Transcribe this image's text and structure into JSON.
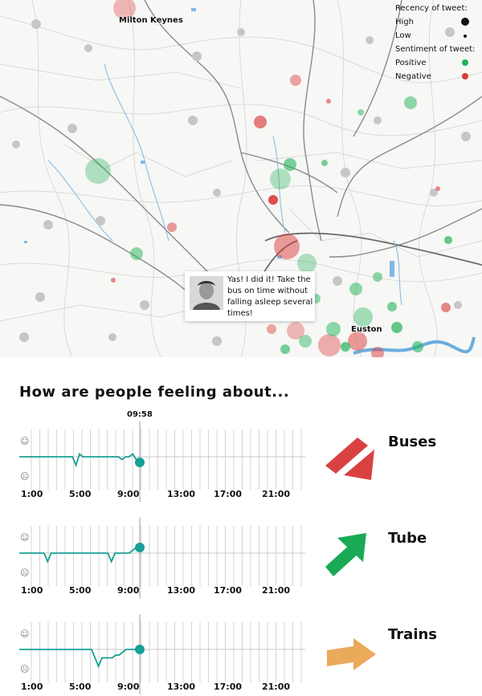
{
  "map": {
    "places": [
      {
        "name": "Milton Keynes"
      },
      {
        "name": "Euston"
      }
    ],
    "legend": {
      "recency_title": "Recency of tweet:",
      "recency_high": "High",
      "recency_low": "Low",
      "sentiment_title": "Sentiment of tweet:",
      "sentiment_positive": "Positive",
      "sentiment_negative": "Negative"
    },
    "colors": {
      "positive": "#21b35a",
      "negative": "#d93b3b",
      "high_dot": "#111111"
    },
    "tooltip": {
      "text": "Yas! I did it! Take the bus on time without falling asleep several times!"
    }
  },
  "section_title": "How are people feeling about...",
  "current_time": "09:58",
  "x_ticks": [
    "1:00",
    "5:00",
    "9:00",
    "13:00",
    "17:00",
    "21:00"
  ],
  "face_icons": {
    "happy": "☺",
    "sad": "☹"
  },
  "modes": [
    {
      "name": "Buses",
      "arrow": "down",
      "arrow_color": "#d94141",
      "sentiment": [
        0.5,
        0.5,
        0.5,
        0.5,
        0.5,
        0.5,
        0.5,
        0.5,
        0.5,
        0.5,
        0.5,
        0.5,
        0.5,
        0.5,
        0.5,
        0.5,
        0.35,
        0.55,
        0.5,
        0.5,
        0.5,
        0.5,
        0.5,
        0.5,
        0.5,
        0.5,
        0.5,
        0.5,
        0.5,
        0.45,
        0.5,
        0.5,
        0.55,
        0.45,
        0.4
      ]
    },
    {
      "name": "Tube",
      "arrow": "up",
      "arrow_color": "#1aaa55",
      "sentiment": [
        0.5,
        0.5,
        0.5,
        0.5,
        0.5,
        0.5,
        0.5,
        0.5,
        0.35,
        0.5,
        0.5,
        0.5,
        0.5,
        0.5,
        0.5,
        0.5,
        0.5,
        0.5,
        0.5,
        0.5,
        0.5,
        0.5,
        0.5,
        0.5,
        0.5,
        0.5,
        0.35,
        0.5,
        0.5,
        0.5,
        0.5,
        0.5,
        0.55,
        0.6,
        0.6
      ]
    },
    {
      "name": "Trains",
      "arrow": "right",
      "arrow_color": "#eba95a",
      "sentiment": [
        0.5,
        0.5,
        0.5,
        0.5,
        0.5,
        0.5,
        0.5,
        0.5,
        0.5,
        0.5,
        0.5,
        0.5,
        0.5,
        0.5,
        0.5,
        0.5,
        0.5,
        0.5,
        0.5,
        0.5,
        0.5,
        0.5,
        0.35,
        0.2,
        0.35,
        0.35,
        0.35,
        0.35,
        0.4,
        0.4,
        0.45,
        0.5,
        0.5,
        0.5,
        0.5,
        0.5
      ]
    }
  ]
}
